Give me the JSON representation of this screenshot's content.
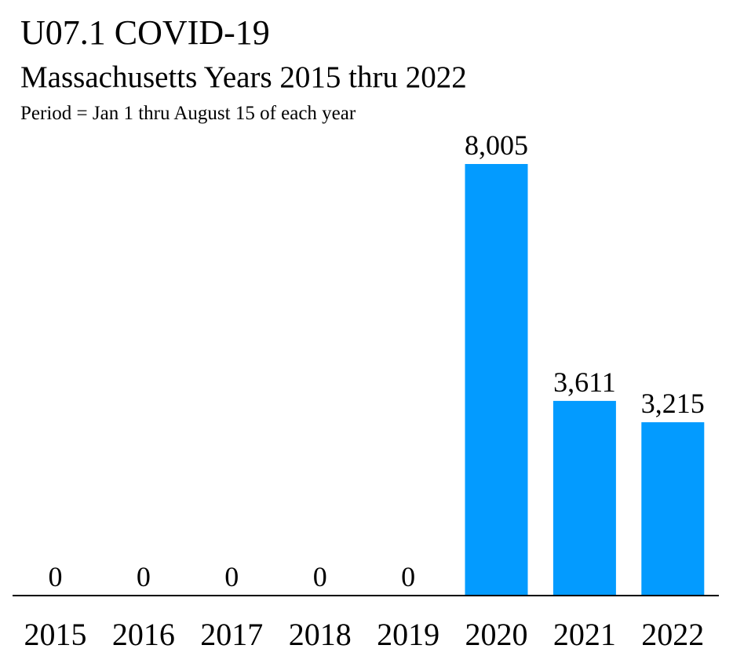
{
  "header": {
    "title": "U07.1 COVID-19",
    "subtitle": "Massachusetts Years 2015 thru 2022",
    "note": "Period = Jan 1 thru August 15 of each year"
  },
  "chart_data": {
    "type": "bar",
    "title": "U07.1 COVID-19",
    "subtitle": "Massachusetts Years 2015 thru 2022",
    "annotation": "Period = Jan 1 thru August 15 of each year",
    "xlabel": "",
    "ylabel": "",
    "categories": [
      "2015",
      "2016",
      "2017",
      "2018",
      "2019",
      "2020",
      "2021",
      "2022"
    ],
    "values": [
      0,
      0,
      0,
      0,
      0,
      8005,
      3611,
      3215
    ],
    "data_labels": [
      "0",
      "0",
      "0",
      "0",
      "0",
      "8,005",
      "3,611",
      "3,215"
    ],
    "ylim": [
      0,
      8005
    ],
    "grid": false,
    "legend": "none",
    "bar_color": "#039BFF"
  }
}
